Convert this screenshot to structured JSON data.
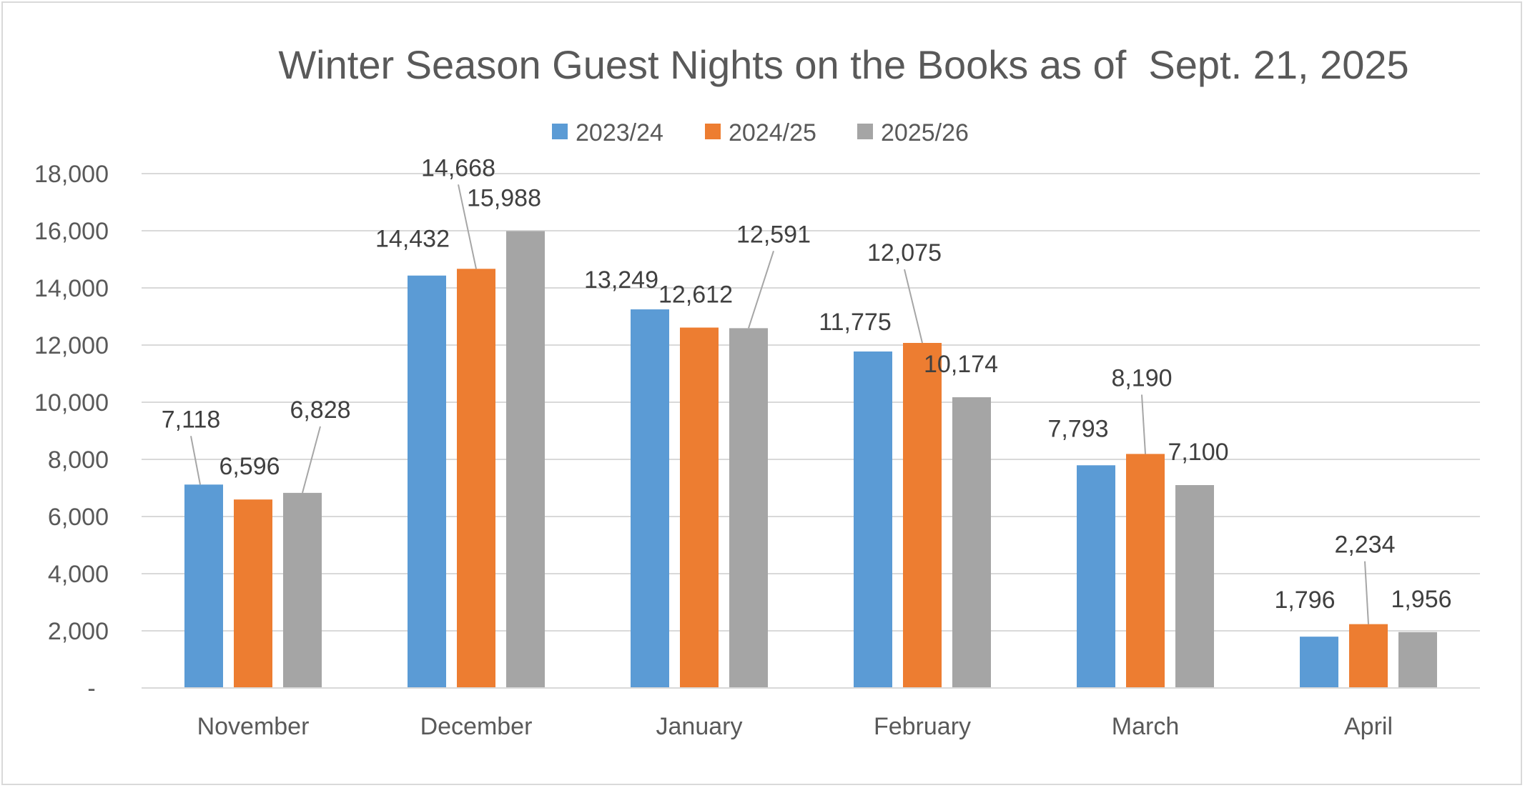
{
  "chart_data": {
    "type": "bar",
    "title": "Winter Season Guest Nights on the Books as of  Sept. 21, 2025",
    "xlabel": "",
    "ylabel": "",
    "categories": [
      "November",
      "December",
      "January",
      "February",
      "March",
      "April"
    ],
    "series": [
      {
        "name": "2023/24",
        "color": "#5b9bd5",
        "values": [
          7118,
          14432,
          13249,
          11775,
          7793,
          1796
        ]
      },
      {
        "name": "2024/25",
        "color": "#ed7d31",
        "values": [
          6596,
          14668,
          12612,
          12075,
          8190,
          2234
        ]
      },
      {
        "name": "2025/26",
        "color": "#a5a5a5",
        "values": [
          6828,
          15988,
          12591,
          10174,
          7100,
          1956
        ]
      }
    ],
    "data_labels": [
      [
        "7,118",
        "14,432",
        "13,249",
        "11,775",
        "7,793",
        "1,796"
      ],
      [
        "6,596",
        "14,668",
        "12,612",
        "12,075",
        "8,190",
        "2,234"
      ],
      [
        "6,828",
        "15,988",
        "12,591",
        "10,174",
        "7,100",
        "1,956"
      ]
    ],
    "ylim": [
      0,
      18000
    ],
    "yticks": [
      0,
      2000,
      4000,
      6000,
      8000,
      10000,
      12000,
      14000,
      16000,
      18000
    ],
    "ytick_labels": [
      "-",
      "2,000",
      "4,000",
      "6,000",
      "8,000",
      "10,000",
      "12,000",
      "14,000",
      "16,000",
      "18,000"
    ],
    "grid": true,
    "legend_position": "top-center"
  }
}
